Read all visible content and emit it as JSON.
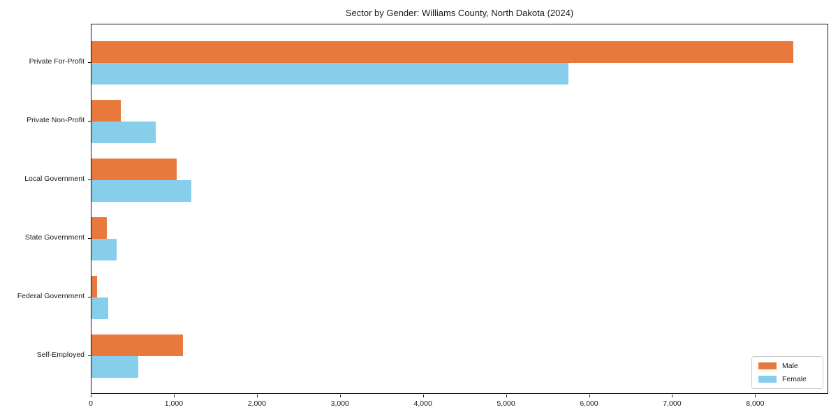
{
  "chart_data": {
    "type": "bar",
    "orientation": "horizontal",
    "title": "Sector by Gender: Williams County, North Dakota (2024)",
    "categories": [
      "Private For-Profit",
      "Private Non-Profit",
      "Local Government",
      "State Government",
      "Federal Government",
      "Self-Employed"
    ],
    "series": [
      {
        "name": "Male",
        "color": "#e8793d",
        "values": [
          8455,
          355,
          1025,
          185,
          65,
          1100
        ]
      },
      {
        "name": "Female",
        "color": "#87ceeb",
        "values": [
          5745,
          775,
          1200,
          300,
          205,
          565
        ]
      }
    ],
    "xlabel": "",
    "ylabel": "",
    "xlim": [
      0,
      8880
    ],
    "xticks": [
      0,
      1000,
      2000,
      3000,
      4000,
      5000,
      6000,
      7000,
      8000
    ],
    "xtick_labels": [
      "0",
      "1,000",
      "2,000",
      "3,000",
      "4,000",
      "5,000",
      "6,000",
      "7,000",
      "8,000"
    ],
    "grid": false,
    "legend": {
      "position": "lower right",
      "entries": [
        "Male",
        "Female"
      ]
    }
  }
}
